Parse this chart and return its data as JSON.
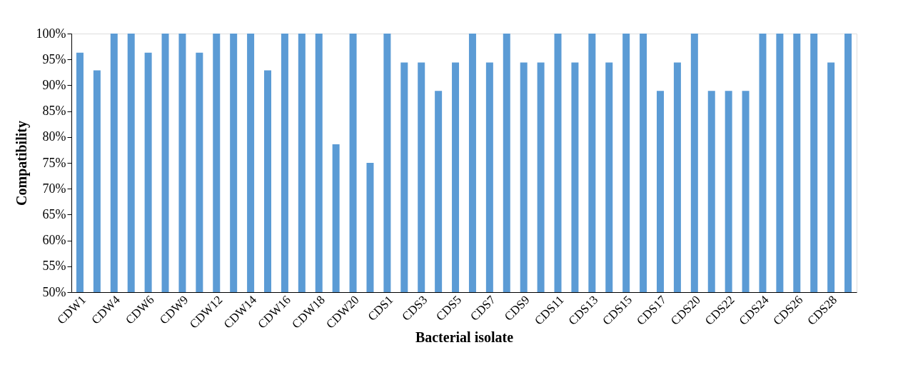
{
  "chart_data": {
    "type": "bar",
    "xlabel": "Bacterial isolate",
    "ylabel": "Compatibility",
    "categories": [
      "CDW1",
      null,
      "CDW4",
      null,
      "CDW6",
      null,
      "CDW9",
      null,
      "CDW12",
      null,
      "CDW14",
      null,
      "CDW16",
      null,
      "CDW18",
      null,
      "CDW20",
      null,
      "CDS1",
      null,
      "CDS3",
      null,
      "CDS5",
      null,
      "CDS7",
      null,
      "CDS9",
      null,
      "CDS11",
      null,
      "CDS13",
      null,
      "CDS15",
      null,
      "CDS17",
      null,
      "CDS20",
      null,
      "CDS22",
      null,
      "CDS24",
      null,
      "CDS26",
      null,
      "CDS28",
      null
    ],
    "values": [
      96.3,
      92.9,
      100,
      100,
      96.3,
      100,
      100,
      96.3,
      100,
      100,
      100,
      92.9,
      100,
      100,
      100,
      78.6,
      100,
      75,
      100,
      94.4,
      94.4,
      88.9,
      94.4,
      100,
      94.4,
      100,
      94.4,
      94.4,
      100,
      94.4,
      100,
      94.4,
      100,
      100,
      88.9,
      94.4,
      100,
      88.9,
      88.9,
      88.9,
      100,
      100,
      100,
      100,
      94.4,
      100
    ],
    "color": "#5b9bd5",
    "ylim": [
      50,
      100
    ],
    "yticks": [
      {
        "value": 50,
        "label": "50%"
      },
      {
        "value": 55,
        "label": "55%"
      },
      {
        "value": 60,
        "label": "60%"
      },
      {
        "value": 65,
        "label": "65%"
      },
      {
        "value": 70,
        "label": "70%"
      },
      {
        "value": 75,
        "label": "75%"
      },
      {
        "value": 80,
        "label": "80%"
      },
      {
        "value": 85,
        "label": "85%"
      },
      {
        "value": 90,
        "label": "90%"
      },
      {
        "value": 95,
        "label": "95%"
      },
      {
        "value": 100,
        "label": "100%"
      }
    ],
    "grid": false
  }
}
